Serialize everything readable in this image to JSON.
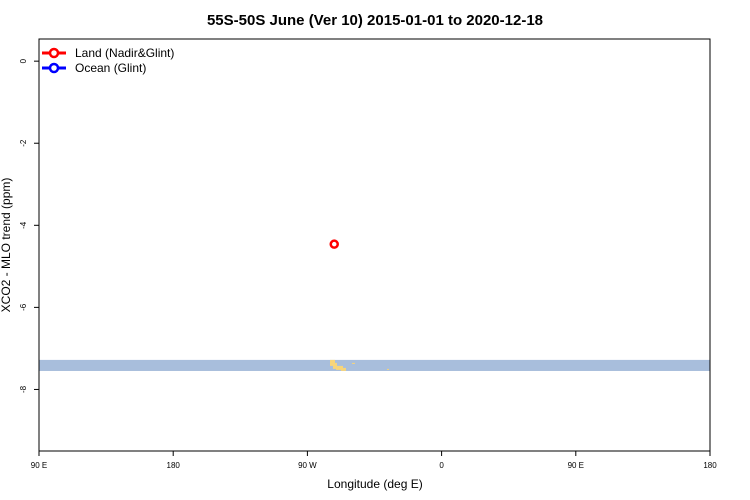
{
  "chart_data": {
    "type": "scatter",
    "title": "55S-50S June (Ver 10)   2015-01-01 to 2020-12-18",
    "xlabel": "Longitude (deg E)",
    "ylabel": "XCO2 - MLO trend (ppm)",
    "xlim": [
      90,
      540
    ],
    "ylim": [
      -9.5,
      0.54
    ],
    "x_ticks": [
      {
        "value": 90,
        "label": "90 E"
      },
      {
        "value": 180,
        "label": "180"
      },
      {
        "value": 270,
        "label": "90 W"
      },
      {
        "value": 360,
        "label": "0"
      },
      {
        "value": 450,
        "label": "90 E"
      },
      {
        "value": 540,
        "label": "180"
      }
    ],
    "y_ticks": [
      {
        "value": 0,
        "label": "0"
      },
      {
        "value": -2,
        "label": "-2"
      },
      {
        "value": -4,
        "label": "-4"
      },
      {
        "value": -6,
        "label": "-6"
      },
      {
        "value": -8,
        "label": "-8"
      }
    ],
    "grid": false,
    "legend_position": "top-left",
    "series": [
      {
        "name": "Land (Nadir&Glint)",
        "color": "#ff0000",
        "points": [
          {
            "x": 288,
            "y": -4.46
          }
        ]
      },
      {
        "name": "Ocean (Glint)",
        "color": "#0000ff",
        "points": []
      }
    ],
    "map_strip": {
      "y_range": [
        -7.55,
        -7.28
      ],
      "ocean_color": "#a8bedc",
      "land_color": "#f7d57a"
    }
  }
}
